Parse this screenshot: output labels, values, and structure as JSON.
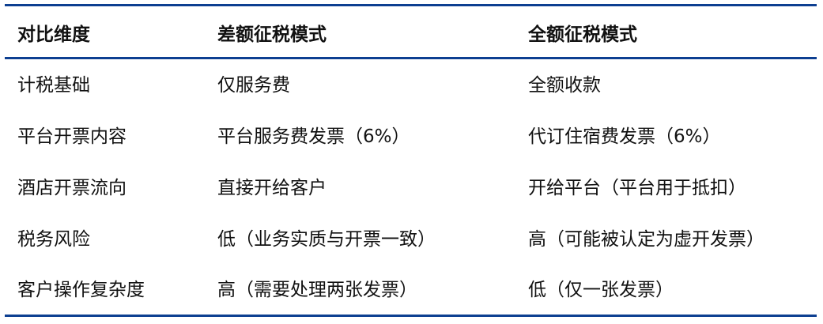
{
  "table": {
    "headers": [
      "对比维度",
      "差额征税模式",
      "全额征税模式"
    ],
    "rows": [
      [
        "计税基础",
        "仅服务费",
        "全额收款"
      ],
      [
        "平台开票内容",
        "平台服务费发票（6%）",
        "代订住宿费发票（6%）"
      ],
      [
        "酒店开票流向",
        "直接开给客户",
        "开给平台（平台用于抵扣）"
      ],
      [
        "税务风险",
        "低（业务实质与开票一致）",
        "高（可能被认定为虚开发票）"
      ],
      [
        "客户操作复杂度",
        "高（需要处理两张发票）",
        "低（仅一张发票）"
      ]
    ],
    "rule_color": "#0d3f91"
  }
}
